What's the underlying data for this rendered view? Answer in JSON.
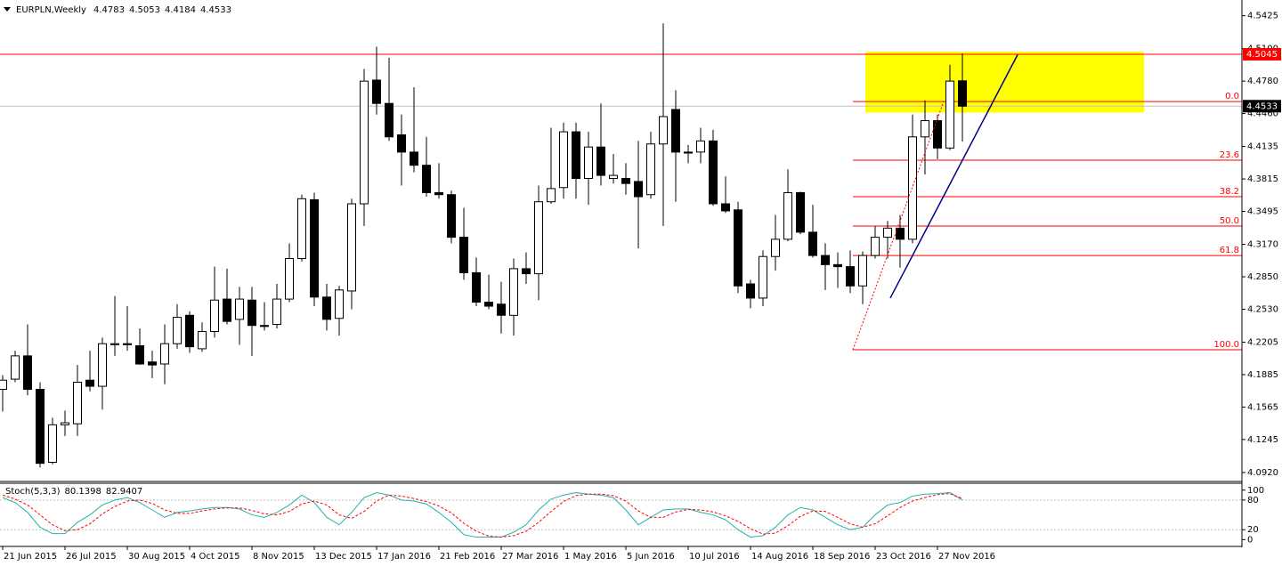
{
  "chart_data": [
    {
      "type": "candlestick",
      "title": "EURPLN,Weekly",
      "categories": [
        "21 Jun 2015",
        null,
        null,
        null,
        null,
        "26 Jul 2015",
        null,
        null,
        null,
        null,
        "30 Aug 2015",
        null,
        null,
        null,
        null,
        "4 Oct 2015",
        null,
        null,
        null,
        null,
        "8 Nov 2015",
        null,
        null,
        null,
        null,
        "13 Dec 2015",
        null,
        null,
        null,
        null,
        "17 Jan 2016",
        null,
        null,
        null,
        null,
        "21 Feb 2016",
        null,
        null,
        null,
        null,
        "27 Mar 2016",
        null,
        null,
        null,
        null,
        "1 May 2016",
        null,
        null,
        null,
        null,
        "5 Jun 2016",
        null,
        null,
        null,
        null,
        "10 Jul 2016",
        null,
        null,
        null,
        null,
        "14 Aug 2016",
        null,
        null,
        null,
        null,
        "18 Sep 2016",
        null,
        null,
        null,
        null,
        "23 Oct 2016",
        null,
        null,
        null,
        null,
        "27 Nov 2016",
        null,
        null
      ],
      "open": [
        4.174,
        4.184,
        4.207,
        4.174,
        4.102,
        4.139,
        4.14,
        4.183,
        4.177,
        4.218,
        4.219,
        4.217,
        4.201,
        4.199,
        4.219,
        4.247,
        4.214,
        4.231,
        4.263,
        4.243,
        4.262,
        4.237,
        4.238,
        4.263,
        4.303,
        4.361,
        4.265,
        4.244,
        4.271,
        4.357,
        4.479,
        4.456,
        4.425,
        4.408,
        4.395,
        4.368,
        4.366,
        4.324,
        4.289,
        4.26,
        4.258,
        4.247,
        4.293,
        4.288,
        4.359,
        4.373,
        4.428,
        4.382,
        4.413,
        4.382,
        4.382,
        4.379,
        4.366,
        4.416,
        4.45,
        4.408,
        4.408,
        4.419,
        4.357,
        4.351,
        4.278,
        4.264,
        4.305,
        4.322,
        4.368,
        4.329,
        4.306,
        4.297,
        4.295,
        4.276,
        4.306,
        4.324,
        4.333,
        4.322,
        4.423,
        4.439,
        4.412,
        4.4783
      ],
      "high": [
        4.188,
        4.212,
        4.238,
        4.181,
        4.146,
        4.153,
        4.198,
        4.212,
        4.225,
        4.266,
        4.256,
        4.234,
        4.212,
        4.238,
        4.258,
        4.251,
        4.24,
        4.295,
        4.293,
        4.275,
        4.275,
        4.26,
        4.278,
        4.318,
        4.366,
        4.368,
        4.278,
        4.276,
        4.362,
        4.49,
        4.512,
        4.501,
        4.445,
        4.472,
        4.423,
        4.397,
        4.37,
        4.353,
        4.304,
        4.287,
        4.28,
        4.303,
        4.309,
        4.375,
        4.432,
        4.437,
        4.437,
        4.428,
        4.456,
        4.406,
        4.397,
        4.419,
        4.428,
        4.535,
        4.469,
        4.415,
        4.432,
        4.43,
        4.384,
        4.359,
        4.282,
        4.311,
        4.346,
        4.391,
        4.369,
        4.356,
        4.318,
        4.309,
        4.311,
        4.31,
        4.335,
        4.34,
        4.346,
        4.445,
        4.459,
        4.445,
        4.494,
        4.5053
      ],
      "low": [
        4.152,
        4.181,
        4.168,
        4.097,
        4.1,
        4.128,
        4.128,
        4.172,
        4.154,
        4.207,
        4.212,
        4.198,
        4.185,
        4.179,
        4.214,
        4.21,
        4.211,
        4.225,
        4.238,
        4.218,
        4.207,
        4.232,
        4.234,
        4.26,
        4.3,
        4.256,
        4.232,
        4.227,
        4.253,
        4.335,
        4.445,
        4.419,
        4.375,
        4.388,
        4.364,
        4.362,
        4.318,
        4.282,
        4.256,
        4.253,
        4.229,
        4.227,
        4.278,
        4.262,
        4.357,
        4.362,
        4.362,
        4.356,
        4.375,
        4.377,
        4.366,
        4.313,
        4.362,
        4.335,
        4.359,
        4.397,
        4.397,
        4.355,
        4.348,
        4.269,
        4.254,
        4.256,
        4.291,
        4.32,
        4.327,
        4.304,
        4.272,
        4.274,
        4.269,
        4.258,
        4.303,
        4.303,
        4.294,
        4.318,
        4.386,
        4.401,
        4.41,
        4.4184
      ],
      "close": [
        4.183,
        4.207,
        4.174,
        4.101,
        4.139,
        4.141,
        4.181,
        4.177,
        4.219,
        4.219,
        4.218,
        4.199,
        4.198,
        4.219,
        4.245,
        4.216,
        4.231,
        4.262,
        4.241,
        4.263,
        4.237,
        4.236,
        4.263,
        4.303,
        4.362,
        4.265,
        4.243,
        4.272,
        4.357,
        4.478,
        4.456,
        4.423,
        4.408,
        4.395,
        4.368,
        4.366,
        4.324,
        4.289,
        4.26,
        4.256,
        4.247,
        4.293,
        4.288,
        4.359,
        4.372,
        4.428,
        4.382,
        4.413,
        4.385,
        4.385,
        4.377,
        4.364,
        4.416,
        4.443,
        4.408,
        4.407,
        4.419,
        4.357,
        4.35,
        4.276,
        4.264,
        4.305,
        4.322,
        4.368,
        4.329,
        4.306,
        4.297,
        4.295,
        4.276,
        4.306,
        4.324,
        4.333,
        4.322,
        4.423,
        4.439,
        4.412,
        4.478,
        4.4533
      ],
      "up_color": "#ffffff",
      "down_color": "#000000",
      "ylim": [
        4.084,
        4.558
      ],
      "yticks": [
        4.5425,
        {
          "value": 4.51,
          "label": "4.5100"
        },
        {
          "value": 4.478,
          "label": "4.4780"
        },
        {
          "value": 4.446,
          "label": "4.4460"
        },
        4.4135,
        4.3815,
        4.3495,
        {
          "value": 4.317,
          "label": "4.3170"
        },
        {
          "value": 4.285,
          "label": "4.2850"
        },
        {
          "value": 4.253,
          "label": "4.2530"
        },
        4.2205,
        4.1885,
        4.1565,
        4.1245,
        {
          "value": 4.092,
          "label": "4.0920"
        }
      ],
      "levels": [
        {
          "value": 4.5045,
          "color": "#ff0000"
        }
      ],
      "fibonacci": {
        "color": "#ff0000",
        "levels": [
          {
            "label": "0.0",
            "value": 4.4578
          },
          {
            "label": "23.6",
            "value": 4.4
          },
          {
            "label": "38.2",
            "value": 4.364
          },
          {
            "label": "50.0",
            "value": 4.335
          },
          {
            "label": "61.8",
            "value": 4.306
          },
          {
            "label": "100.0",
            "value": 4.213
          }
        ]
      },
      "highlight": {
        "ylim": [
          4.447,
          4.507
        ],
        "color": "#ffff00"
      },
      "trendline": {
        "values": [
          4.264,
          4.504
        ],
        "color": "#00008b"
      }
    },
    {
      "type": "line",
      "title": "Stoch(5,3,3)",
      "series": [
        {
          "color": "#20b2aa",
          "dashed": false,
          "values": [
            85,
            75,
            55,
            25,
            12,
            12,
            35,
            50,
            70,
            80,
            85,
            75,
            60,
            45,
            55,
            58,
            62,
            65,
            65,
            62,
            50,
            45,
            55,
            70,
            90,
            75,
            45,
            30,
            55,
            85,
            95,
            90,
            80,
            78,
            72,
            55,
            35,
            10,
            5,
            5,
            5,
            15,
            30,
            60,
            82,
            90,
            95,
            92,
            90,
            85,
            60,
            30,
            45,
            60,
            62,
            62,
            55,
            50,
            40,
            20,
            5,
            8,
            25,
            50,
            65,
            60,
            45,
            30,
            20,
            25,
            50,
            70,
            75,
            88,
            92,
            93,
            95,
            80.1398
          ]
        },
        {
          "color": "#ff0000",
          "dashed": true,
          "values": [
            90,
            82,
            70,
            50,
            30,
            18,
            20,
            32,
            52,
            67,
            78,
            80,
            73,
            60,
            53,
            53,
            58,
            62,
            64,
            64,
            59,
            52,
            50,
            57,
            72,
            78,
            70,
            50,
            43,
            57,
            78,
            90,
            88,
            83,
            77,
            68,
            54,
            33,
            17,
            7,
            5,
            8,
            17,
            35,
            57,
            77,
            89,
            92,
            92,
            89,
            78,
            58,
            45,
            45,
            56,
            61,
            60,
            56,
            48,
            37,
            22,
            11,
            13,
            28,
            47,
            58,
            57,
            45,
            32,
            25,
            32,
            48,
            65,
            78,
            85,
            91,
            93,
            82.9407
          ]
        }
      ],
      "ylim": [
        -12,
        114
      ],
      "yticks": [
        0,
        20,
        80,
        100
      ],
      "levels": [
        20,
        80
      ]
    }
  ]
}
